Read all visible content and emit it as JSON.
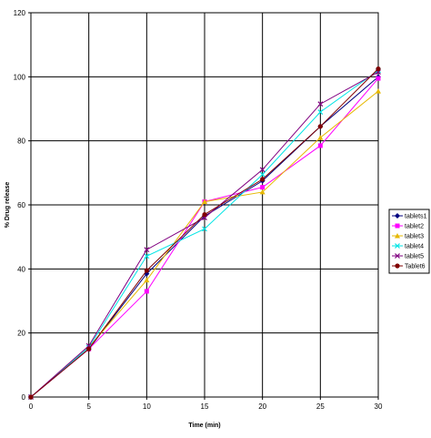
{
  "chart_data": {
    "type": "line",
    "title": "",
    "xlabel": "Time (min)",
    "ylabel": "% Drug release",
    "xlim": [
      0,
      30
    ],
    "ylim": [
      0,
      120
    ],
    "x_ticks": [
      0,
      5,
      10,
      15,
      20,
      25,
      30
    ],
    "y_ticks": [
      0,
      20,
      40,
      60,
      80,
      100,
      120
    ],
    "grid": true,
    "legend_position": "right",
    "x": [
      0,
      5,
      10,
      15,
      20,
      25,
      30
    ],
    "series": [
      {
        "name": "tablets1",
        "color": "#000080",
        "marker": "diamond",
        "values": [
          0,
          15,
          38.5,
          56.5,
          67.5,
          84.5,
          100
        ]
      },
      {
        "name": "tablet2",
        "color": "#ff00ff",
        "marker": "square",
        "values": [
          0,
          15,
          33,
          61,
          65.5,
          78.5,
          99.5
        ]
      },
      {
        "name": "tablet3",
        "color": "#e6b800",
        "marker": "triangle",
        "values": [
          0,
          15.5,
          36.5,
          61,
          64,
          81,
          95.5
        ]
      },
      {
        "name": "tablet4",
        "color": "#00e5e5",
        "marker": "x",
        "values": [
          0,
          15.5,
          44,
          52.5,
          69.5,
          89,
          102
        ]
      },
      {
        "name": "tablet5",
        "color": "#800080",
        "marker": "x",
        "values": [
          0,
          16,
          46,
          56,
          71,
          91.5,
          101.5
        ]
      },
      {
        "name": "Tablet6",
        "color": "#800000",
        "marker": "circle",
        "values": [
          0,
          15,
          39.5,
          57,
          68,
          84.5,
          102.5
        ]
      }
    ]
  }
}
